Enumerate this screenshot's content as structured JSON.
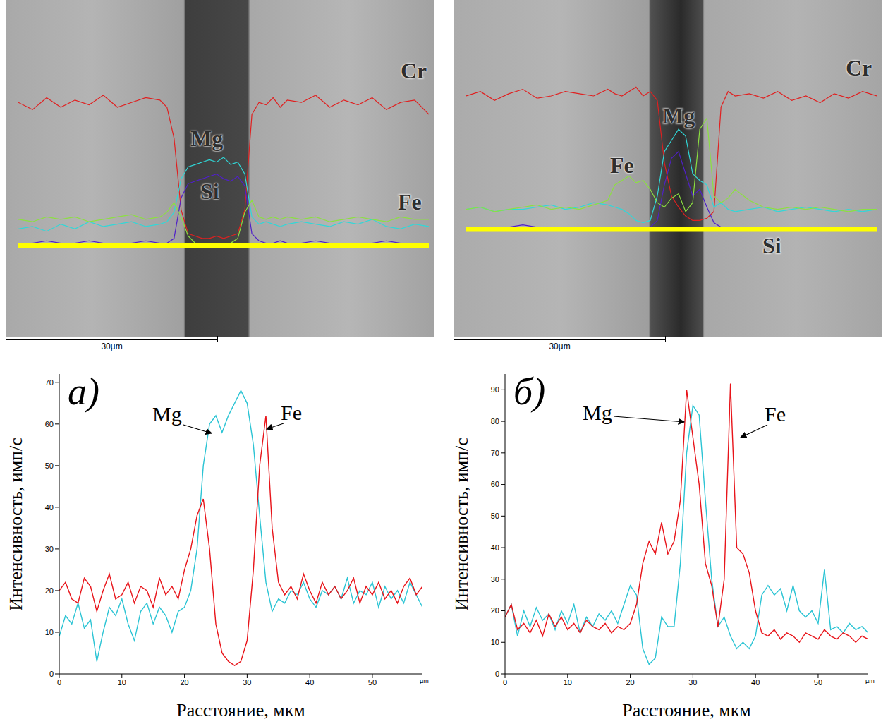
{
  "chart_data": [
    {
      "type": "line",
      "tick_labels": false,
      "xlim": [
        0,
        58
      ],
      "ylim": [
        0,
        100
      ],
      "scale_bar": {
        "value": 30,
        "label": "30µm"
      },
      "x": [
        0,
        2,
        4,
        6,
        8,
        10,
        12,
        14,
        16,
        18,
        20,
        21,
        22,
        23,
        24,
        25,
        26,
        27,
        28,
        29,
        30,
        31,
        32,
        33,
        34,
        35,
        36,
        37,
        38,
        40,
        42,
        44,
        46,
        48,
        50,
        52,
        54,
        56,
        58
      ],
      "series": [
        {
          "name": "Cr",
          "color": "#e02020",
          "values": [
            60,
            57,
            62,
            58,
            61,
            59,
            63,
            58,
            60,
            62,
            61,
            58,
            45,
            15,
            5,
            4,
            3,
            3,
            4,
            3,
            4,
            5,
            15,
            55,
            60,
            59,
            62,
            58,
            61,
            60,
            63,
            58,
            61,
            59,
            62,
            57,
            60,
            61,
            55
          ]
        },
        {
          "name": "Mg",
          "color": "#30d8d8",
          "values": [
            7,
            8,
            6,
            9,
            7,
            10,
            8,
            9,
            10,
            8,
            9,
            10,
            14,
            28,
            33,
            34,
            35,
            36,
            35,
            37,
            34,
            35,
            30,
            12,
            9,
            10,
            9,
            8,
            9,
            10,
            9,
            8,
            10,
            9,
            11,
            8,
            7,
            9,
            8
          ]
        },
        {
          "name": "Si",
          "color": "#5020c8",
          "values": [
            1,
            1,
            2,
            1,
            1,
            2,
            1,
            1,
            1,
            2,
            1,
            1,
            3,
            20,
            26,
            27,
            28,
            29,
            30,
            28,
            27,
            29,
            25,
            5,
            2,
            1,
            1,
            2,
            1,
            1,
            2,
            1,
            1,
            1,
            1,
            2,
            1,
            1,
            1
          ]
        },
        {
          "name": "Fe",
          "color": "#8ce040",
          "values": [
            11,
            10,
            12,
            11,
            12,
            10,
            11,
            12,
            13,
            11,
            12,
            14,
            18,
            12,
            4,
            1,
            0,
            0,
            1,
            0,
            1,
            3,
            14,
            19,
            12,
            11,
            12,
            11,
            12,
            11,
            12,
            10,
            11,
            12,
            11,
            10,
            12,
            11,
            11
          ]
        }
      ]
    },
    {
      "type": "line",
      "tick_labels": false,
      "xlim": [
        0,
        58
      ],
      "ylim": [
        0,
        100
      ],
      "scale_bar": {
        "value": 30,
        "label": "30µm"
      },
      "x": [
        0,
        2,
        4,
        6,
        8,
        10,
        12,
        14,
        16,
        18,
        20,
        21,
        22,
        23,
        24,
        25,
        26,
        27,
        28,
        29,
        30,
        31,
        32,
        33,
        34,
        35,
        36,
        37,
        38,
        40,
        42,
        44,
        46,
        48,
        50,
        52,
        54,
        56,
        58
      ],
      "series": [
        {
          "name": "Cr",
          "color": "#e02020",
          "values": [
            60,
            62,
            58,
            61,
            63,
            59,
            60,
            62,
            61,
            60,
            63,
            61,
            60,
            62,
            64,
            60,
            62,
            58,
            30,
            15,
            10,
            6,
            4,
            4,
            5,
            8,
            55,
            62,
            60,
            61,
            59,
            62,
            58,
            60,
            57,
            61,
            59,
            62,
            60
          ]
        },
        {
          "name": "Mg",
          "color": "#30d8d8",
          "values": [
            9,
            10,
            8,
            9,
            9,
            10,
            11,
            9,
            10,
            12,
            11,
            10,
            9,
            7,
            4,
            3,
            4,
            15,
            35,
            40,
            45,
            42,
            25,
            22,
            20,
            10,
            12,
            9,
            8,
            9,
            10,
            8,
            9,
            10,
            9,
            8,
            9,
            8,
            9
          ]
        },
        {
          "name": "Si",
          "color": "#5020c8",
          "values": [
            1,
            1,
            1,
            1,
            2,
            1,
            1,
            1,
            1,
            1,
            1,
            1,
            1,
            1,
            1,
            1,
            1,
            4,
            20,
            32,
            35,
            25,
            15,
            18,
            10,
            3,
            1,
            1,
            1,
            1,
            1,
            1,
            1,
            1,
            1,
            1,
            1,
            1,
            1
          ]
        },
        {
          "name": "Fe",
          "color": "#8ce040",
          "values": [
            9,
            10,
            8,
            9,
            10,
            11,
            9,
            10,
            9,
            11,
            13,
            20,
            22,
            24,
            21,
            22,
            18,
            12,
            10,
            14,
            16,
            8,
            12,
            45,
            50,
            15,
            12,
            14,
            18,
            13,
            10,
            9,
            10,
            9,
            10,
            9,
            8,
            9,
            9
          ]
        }
      ]
    },
    {
      "type": "line",
      "panel_label": "а)",
      "x_label": "Расстояние, мкм",
      "y_label": "Интенсивность, имп/с",
      "x_unit": "µm",
      "xlim": [
        0,
        58
      ],
      "xticks": [
        0,
        10,
        20,
        30,
        40,
        50
      ],
      "ylim": [
        0,
        72
      ],
      "yticks": [
        0,
        10,
        20,
        30,
        40,
        50,
        60,
        70
      ],
      "x": [
        0,
        1,
        2,
        3,
        4,
        5,
        6,
        7,
        8,
        9,
        10,
        11,
        12,
        13,
        14,
        15,
        16,
        17,
        18,
        19,
        20,
        21,
        22,
        23,
        24,
        25,
        26,
        27,
        28,
        29,
        30,
        31,
        32,
        33,
        34,
        35,
        36,
        37,
        38,
        39,
        40,
        41,
        42,
        43,
        44,
        45,
        46,
        47,
        48,
        49,
        50,
        51,
        52,
        53,
        54,
        55,
        56,
        57,
        58
      ],
      "series": [
        {
          "name": "Mg",
          "color": "#2bc4d4",
          "values": [
            9,
            14,
            12,
            17,
            11,
            13,
            3,
            10,
            16,
            14,
            18,
            12,
            8,
            15,
            17,
            12,
            16,
            14,
            10,
            15,
            16,
            20,
            30,
            50,
            60,
            62,
            58,
            62,
            65,
            68,
            65,
            55,
            38,
            22,
            15,
            18,
            17,
            20,
            19,
            22,
            18,
            16,
            20,
            19,
            21,
            18,
            23,
            17,
            20,
            19,
            22,
            16,
            21,
            18,
            20,
            17,
            22,
            19,
            16
          ]
        },
        {
          "name": "Fe",
          "color": "#e8141a",
          "values": [
            20,
            22,
            18,
            17,
            23,
            21,
            15,
            20,
            24,
            18,
            19,
            22,
            17,
            21,
            20,
            16,
            23,
            19,
            21,
            18,
            25,
            30,
            38,
            42,
            30,
            12,
            5,
            3,
            2,
            3,
            8,
            25,
            50,
            62,
            35,
            22,
            19,
            21,
            18,
            24,
            20,
            17,
            22,
            19,
            21,
            18,
            20,
            23,
            17,
            21,
            19,
            22,
            18,
            20,
            17,
            21,
            23,
            19,
            21
          ]
        }
      ]
    },
    {
      "type": "line",
      "panel_label": "б)",
      "x_label": "Расстояние, мкм",
      "y_label": "Интенсивность, имп/с",
      "x_unit": "µm",
      "xlim": [
        0,
        58
      ],
      "xticks": [
        0,
        10,
        20,
        30,
        40,
        50
      ],
      "ylim": [
        0,
        95
      ],
      "yticks": [
        0,
        10,
        20,
        30,
        40,
        50,
        60,
        70,
        80,
        90
      ],
      "x": [
        0,
        1,
        2,
        3,
        4,
        5,
        6,
        7,
        8,
        9,
        10,
        11,
        12,
        13,
        14,
        15,
        16,
        17,
        18,
        19,
        20,
        21,
        22,
        23,
        24,
        25,
        26,
        27,
        28,
        29,
        30,
        31,
        32,
        33,
        34,
        35,
        36,
        37,
        38,
        39,
        40,
        41,
        42,
        43,
        44,
        45,
        46,
        47,
        48,
        49,
        50,
        51,
        52,
        53,
        54,
        55,
        56,
        57,
        58
      ],
      "series": [
        {
          "name": "Mg",
          "color": "#2bc4d4",
          "values": [
            18,
            22,
            12,
            20,
            15,
            21,
            17,
            19,
            14,
            20,
            16,
            22,
            13,
            18,
            15,
            19,
            17,
            20,
            16,
            22,
            28,
            25,
            8,
            3,
            5,
            18,
            15,
            15,
            35,
            70,
            85,
            82,
            55,
            30,
            15,
            18,
            12,
            8,
            10,
            8,
            12,
            25,
            28,
            25,
            27,
            20,
            28,
            20,
            18,
            20,
            16,
            33,
            14,
            15,
            13,
            16,
            14,
            15,
            13
          ]
        },
        {
          "name": "Fe",
          "color": "#e8141a",
          "values": [
            18,
            22,
            14,
            16,
            13,
            17,
            12,
            19,
            15,
            18,
            14,
            16,
            13,
            17,
            15,
            14,
            16,
            13,
            15,
            14,
            16,
            22,
            35,
            42,
            38,
            48,
            38,
            42,
            55,
            90,
            75,
            60,
            35,
            28,
            15,
            30,
            92,
            40,
            38,
            32,
            20,
            13,
            12,
            14,
            11,
            13,
            12,
            10,
            13,
            12,
            11,
            14,
            12,
            11,
            13,
            12,
            10,
            12,
            11
          ]
        }
      ]
    }
  ]
}
